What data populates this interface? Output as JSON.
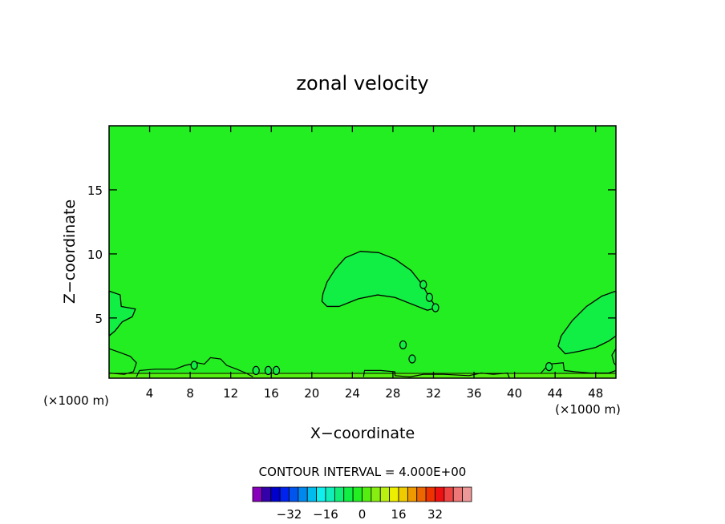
{
  "chart_data": {
    "type": "heatmap",
    "title": "zonal velocity",
    "xlabel": "X−coordinate",
    "ylabel": "Z−coordinate",
    "x_unit_left": "(×1000 m)",
    "x_unit_right": "(×1000 m)",
    "xlim": [
      0,
      50
    ],
    "ylim": [
      0.3,
      20
    ],
    "x_ticks": [
      4,
      8,
      12,
      16,
      20,
      24,
      28,
      32,
      36,
      40,
      44,
      48
    ],
    "y_ticks": [
      5,
      10,
      15
    ],
    "contour_interval_text": "CONTOUR INTERVAL = 4.000E+00",
    "background_level_color": "#22ee22",
    "regions": [
      {
        "name": "central-jet",
        "level_color": "#11ee44",
        "outline": [
          [
            21.1,
            6.9
          ],
          [
            21.5,
            7.8
          ],
          [
            22.3,
            8.8
          ],
          [
            23.3,
            9.7
          ],
          [
            24.8,
            10.2
          ],
          [
            26.6,
            10.1
          ],
          [
            28.2,
            9.6
          ],
          [
            29.8,
            8.7
          ],
          [
            30.9,
            7.6
          ],
          [
            31.6,
            6.6
          ],
          [
            32.3,
            5.8
          ],
          [
            31.4,
            5.6
          ],
          [
            29.8,
            6.1
          ],
          [
            28.2,
            6.6
          ],
          [
            26.5,
            6.8
          ],
          [
            24.6,
            6.5
          ],
          [
            22.7,
            5.9
          ],
          [
            21.5,
            5.9
          ],
          [
            21.0,
            6.3
          ]
        ]
      },
      {
        "name": "east-jet",
        "level_color": "#11ee44",
        "outline": [
          [
            50,
            7.1
          ],
          [
            48.6,
            6.7
          ],
          [
            47.1,
            5.9
          ],
          [
            45.7,
            4.8
          ],
          [
            44.6,
            3.6
          ],
          [
            44.3,
            2.8
          ],
          [
            45.0,
            2.2
          ],
          [
            46.4,
            2.4
          ],
          [
            48.0,
            2.7
          ],
          [
            49.3,
            3.2
          ],
          [
            50,
            3.6
          ]
        ]
      },
      {
        "name": "west-edge",
        "level_color": "#11ee44",
        "outline": [
          [
            0,
            7.1
          ],
          [
            1.1,
            6.8
          ],
          [
            1.2,
            5.9
          ],
          [
            2.6,
            5.7
          ],
          [
            2.3,
            5.1
          ],
          [
            1.3,
            4.7
          ],
          [
            0.6,
            4.0
          ],
          [
            0,
            3.6
          ]
        ]
      }
    ],
    "small_cells": [
      {
        "x": 31.0,
        "y": 7.6
      },
      {
        "x": 31.6,
        "y": 6.6
      },
      {
        "x": 32.2,
        "y": 5.8
      },
      {
        "x": 29.0,
        "y": 2.9
      },
      {
        "x": 29.9,
        "y": 1.8
      },
      {
        "x": 43.4,
        "y": 1.2
      },
      {
        "x": 14.5,
        "y": 0.9
      },
      {
        "x": 15.7,
        "y": 0.9
      },
      {
        "x": 16.5,
        "y": 0.9
      },
      {
        "x": 8.4,
        "y": 1.3
      }
    ],
    "colorbar": {
      "colors": [
        "#8800bb",
        "#3300aa",
        "#0000cc",
        "#0022ee",
        "#0055ee",
        "#0088ee",
        "#00bbee",
        "#11eeee",
        "#11eebb",
        "#11ee77",
        "#11ee44",
        "#22ee22",
        "#55ee11",
        "#88ee11",
        "#bbee11",
        "#eeee00",
        "#eecc00",
        "#ee9900",
        "#ee6600",
        "#ee3300",
        "#ee1111",
        "#ee4444",
        "#ee7777",
        "#ee9999"
      ],
      "tick_labels": [
        "−32",
        "−16",
        "0",
        "16",
        "32"
      ],
      "tick_values": [
        -32,
        -16,
        0,
        16,
        32
      ]
    }
  }
}
